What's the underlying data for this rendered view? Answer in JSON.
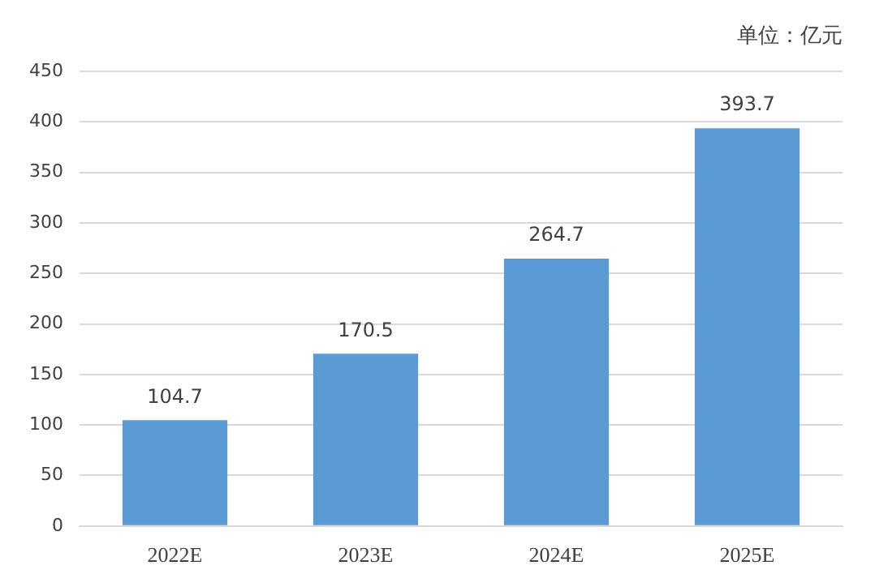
{
  "chart_data": {
    "type": "bar",
    "categories": [
      "2022E",
      "2023E",
      "2024E",
      "2025E"
    ],
    "values": [
      104.7,
      170.5,
      264.7,
      393.7
    ],
    "color": "#5b9bd5",
    "ylim": [
      0,
      450
    ],
    "yticks": [
      0,
      50,
      100,
      150,
      200,
      250,
      300,
      350,
      400,
      450
    ],
    "grid": "y",
    "data_labels": true,
    "legend": false,
    "annotations": [
      "单位：亿元"
    ]
  }
}
